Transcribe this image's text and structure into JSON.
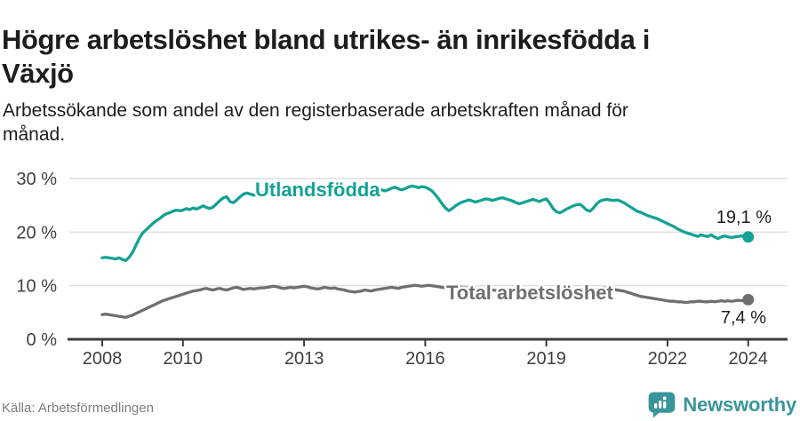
{
  "header": {
    "title": "Högre arbetslöshet bland utrikes- än inrikesfödda i Växjö",
    "subtitle": "Arbetssökande som andel av den registerbaserade arbetskraften månad för månad."
  },
  "footer": {
    "source": "Källa: Arbetsförmedlingen",
    "logo_text": "Newsworthy"
  },
  "colors": {
    "accent_teal": "#13a294",
    "series_gray": "#6f6f72",
    "logo_teal": "#39959b",
    "grid": "#dedede",
    "axis": "#3b3b3b",
    "tick_text": "#3f3f3f",
    "text_dark": "#1d1d1b"
  },
  "chart_data": {
    "type": "line",
    "unit": "%",
    "frequency": "monthly",
    "x_start": "2008-01",
    "x_end": "2024-01",
    "ylim": [
      0,
      30
    ],
    "grid": "horizontal",
    "legend_position": "inline-labels",
    "y_ticks": [
      {
        "value": 0,
        "label": "0 %"
      },
      {
        "value": 10,
        "label": "10 %"
      },
      {
        "value": 20,
        "label": "20 %"
      },
      {
        "value": 30,
        "label": "30 %"
      }
    ],
    "x_ticks": [
      {
        "year": 2008,
        "label": "2008"
      },
      {
        "year": 2010,
        "label": "2010"
      },
      {
        "year": 2013,
        "label": "2013"
      },
      {
        "year": 2016,
        "label": "2016"
      },
      {
        "year": 2019,
        "label": "2019"
      },
      {
        "year": 2022,
        "label": "2022"
      },
      {
        "year": 2024,
        "label": "2024"
      }
    ],
    "series": [
      {
        "name": "Utlandsfödda",
        "slug": "utlandsfodda",
        "color": "#13a294",
        "end_label": "19,1 %",
        "last_value": 19.1,
        "values": [
          15.2,
          15.3,
          15.2,
          15.1,
          15.0,
          15.2,
          14.9,
          14.7,
          15.3,
          16.2,
          17.5,
          18.8,
          19.8,
          20.4,
          21.0,
          21.6,
          22.1,
          22.5,
          23.0,
          23.4,
          23.6,
          23.9,
          24.1,
          24.0,
          24.1,
          24.4,
          24.2,
          24.5,
          24.3,
          24.6,
          24.9,
          24.6,
          24.4,
          24.7,
          25.3,
          25.9,
          26.4,
          26.6,
          25.7,
          25.5,
          26.0,
          26.6,
          27.1,
          27.3,
          27.1,
          26.9,
          27.0,
          27.2,
          27.4,
          27.2,
          27.0,
          27.3,
          27.1,
          26.8,
          26.6,
          26.8,
          27.0,
          27.1,
          27.2,
          27.0,
          27.2,
          27.4,
          27.3,
          27.1,
          27.3,
          27.5,
          27.7,
          27.5,
          27.3,
          27.4,
          27.6,
          27.8,
          27.9,
          27.6,
          27.4,
          27.6,
          27.8,
          27.5,
          27.3,
          27.5,
          27.7,
          27.9,
          28.1,
          27.9,
          27.7,
          27.9,
          28.2,
          28.4,
          28.1,
          27.9,
          28.1,
          28.4,
          28.6,
          28.5,
          28.3,
          28.5,
          28.4,
          28.1,
          27.7,
          27.0,
          26.2,
          25.3,
          24.5,
          24.0,
          24.4,
          24.9,
          25.3,
          25.6,
          25.8,
          26.0,
          25.8,
          25.6,
          25.8,
          26.0,
          26.2,
          26.1,
          25.9,
          26.1,
          26.3,
          26.4,
          26.2,
          26.0,
          25.8,
          25.5,
          25.3,
          25.5,
          25.7,
          25.9,
          26.1,
          25.9,
          25.7,
          26.0,
          26.2,
          25.4,
          24.4,
          23.8,
          23.6,
          23.9,
          24.3,
          24.6,
          24.9,
          25.1,
          25.2,
          24.7,
          24.1,
          23.9,
          24.5,
          25.3,
          25.8,
          26.0,
          26.1,
          26.0,
          25.9,
          26.0,
          25.8,
          25.5,
          25.1,
          24.7,
          24.3,
          23.9,
          23.7,
          23.4,
          23.1,
          22.9,
          22.7,
          22.5,
          22.2,
          21.9,
          21.6,
          21.3,
          21.0,
          20.6,
          20.3,
          20.0,
          19.8,
          19.6,
          19.4,
          19.2,
          19.5,
          19.3,
          19.2,
          19.5,
          19.1,
          18.8,
          19.1,
          19.3,
          19.1,
          19.0,
          19.1,
          19.2,
          19.3,
          19.2,
          19.1
        ]
      },
      {
        "name": "Total arbetslöshet",
        "slug": "total-arbetsloshet",
        "color": "#6f6f72",
        "end_label": "7,4 %",
        "last_value": 7.4,
        "values": [
          4.6,
          4.7,
          4.6,
          4.5,
          4.4,
          4.3,
          4.2,
          4.1,
          4.3,
          4.5,
          4.8,
          5.1,
          5.4,
          5.7,
          6.0,
          6.3,
          6.6,
          6.9,
          7.2,
          7.4,
          7.6,
          7.8,
          8.0,
          8.2,
          8.4,
          8.6,
          8.8,
          9.0,
          9.1,
          9.2,
          9.4,
          9.5,
          9.3,
          9.2,
          9.4,
          9.5,
          9.3,
          9.2,
          9.4,
          9.6,
          9.7,
          9.5,
          9.3,
          9.4,
          9.5,
          9.4,
          9.5,
          9.6,
          9.6,
          9.7,
          9.8,
          9.9,
          9.8,
          9.6,
          9.5,
          9.6,
          9.7,
          9.6,
          9.7,
          9.8,
          9.9,
          9.8,
          9.6,
          9.5,
          9.4,
          9.5,
          9.7,
          9.6,
          9.5,
          9.6,
          9.4,
          9.3,
          9.2,
          9.0,
          8.9,
          8.8,
          8.9,
          9.0,
          9.2,
          9.1,
          9.0,
          9.2,
          9.3,
          9.4,
          9.5,
          9.6,
          9.7,
          9.6,
          9.5,
          9.7,
          9.8,
          9.9,
          10.0,
          10.1,
          10.0,
          9.9,
          10.0,
          10.1,
          10.0,
          9.9,
          9.8,
          9.7,
          9.6,
          9.7,
          9.8,
          9.9,
          9.8,
          9.7,
          9.6,
          9.5,
          9.4,
          9.3,
          9.2,
          9.3,
          9.4,
          9.3,
          9.2,
          9.1,
          9.2,
          9.3,
          9.1,
          9.0,
          8.9,
          8.8,
          8.7,
          8.6,
          8.7,
          8.8,
          8.7,
          8.6,
          8.5,
          8.4,
          8.3,
          8.2,
          8.1,
          8.2,
          8.3,
          8.4,
          8.5,
          8.6,
          8.5,
          8.4,
          8.5,
          8.6,
          8.7,
          8.8,
          9.0,
          9.3,
          9.5,
          9.6,
          9.5,
          9.4,
          9.3,
          9.2,
          9.1,
          9.0,
          8.8,
          8.6,
          8.4,
          8.2,
          8.0,
          7.9,
          7.8,
          7.7,
          7.6,
          7.5,
          7.4,
          7.3,
          7.2,
          7.1,
          7.1,
          7.0,
          7.0,
          6.9,
          6.9,
          7.0,
          7.0,
          7.1,
          7.1,
          7.0,
          7.0,
          7.1,
          7.0,
          7.1,
          7.2,
          7.1,
          7.2,
          7.1,
          7.2,
          7.3,
          7.2,
          7.3,
          7.4
        ]
      }
    ]
  }
}
